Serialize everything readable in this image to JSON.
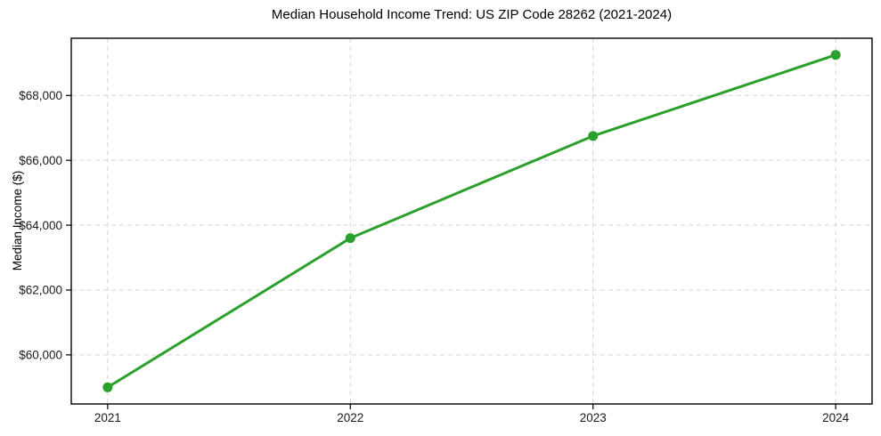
{
  "chart_data": {
    "type": "line",
    "title": "Median Household Income Trend: US ZIP Code 28262 (2021-2024)",
    "ylabel": "Median Income ($)",
    "xlabel": "",
    "series": [
      {
        "name": "Median Household Income",
        "x": [
          2021,
          2022,
          2023,
          2024
        ],
        "values": [
          59000,
          63600,
          66750,
          69250
        ]
      }
    ],
    "x_ticks": [
      2021,
      2022,
      2023,
      2024
    ],
    "x_tick_labels": [
      "2021",
      "2022",
      "2023",
      "2024"
    ],
    "y_ticks": [
      60000,
      62000,
      64000,
      66000,
      68000
    ],
    "y_tick_labels": [
      "$60,000",
      "$62,000",
      "$64,000",
      "$66,000",
      "$68,000"
    ],
    "xlim": [
      2020.85,
      2024.15
    ],
    "ylim": [
      58487,
      69763
    ],
    "grid": true,
    "grid_style": "dashed",
    "legend_position": "none",
    "colors": {
      "line": "#2ca02c",
      "marker": "#2ca02c",
      "grid": "#d4d4d4",
      "spine": "#000000",
      "tick": "#000000",
      "background": "#ffffff"
    }
  }
}
